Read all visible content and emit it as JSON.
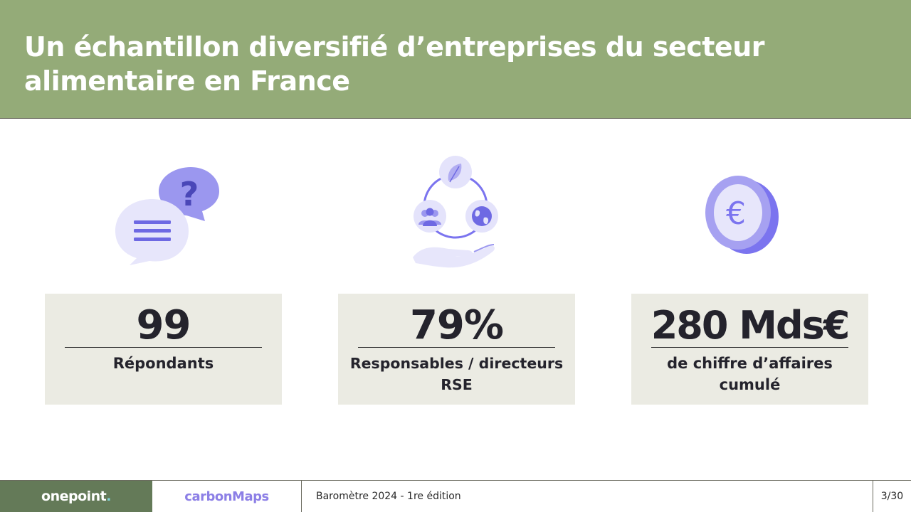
{
  "header": {
    "title": "Un échantillon diversifié d’entreprises du secteur alimentaire en France"
  },
  "icons": {
    "chat": "speech-bubbles-question-icon",
    "cycle": "sustainability-cycle-hand-icon",
    "coin": "euro-coin-icon"
  },
  "stats": [
    {
      "value": "99",
      "label": "Répondants"
    },
    {
      "value": "79%",
      "label": "Responsables / directeurs RSE"
    },
    {
      "value": "280 Mds€",
      "label": "de chiffre d’affaires cumulé"
    }
  ],
  "footer": {
    "brand_1": "onepoint",
    "brand_1_dot": ".",
    "brand_2": "carbonMaps",
    "document_title": "Baromètre 2024 - 1re édition",
    "page": "3/30"
  },
  "colors": {
    "header_bg": "#94ab78",
    "card_bg": "#ebebe3",
    "accent_purple": "#7b74ef",
    "footer_green": "#647a58"
  }
}
